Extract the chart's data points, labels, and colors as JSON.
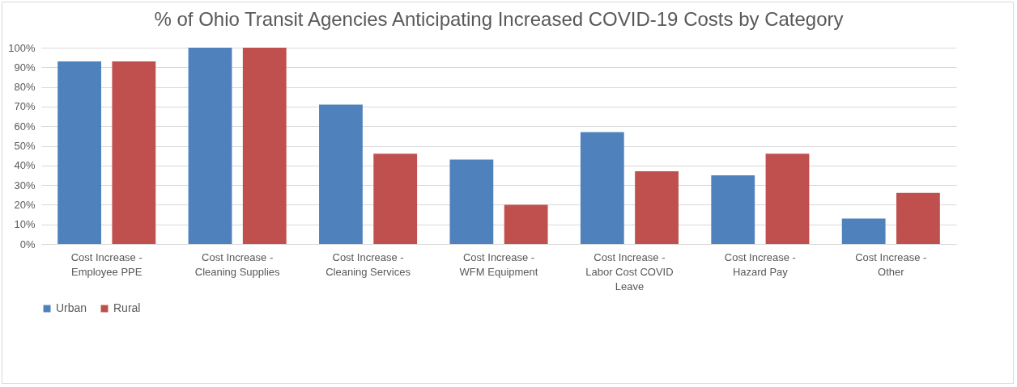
{
  "chart_data": {
    "type": "bar",
    "title": "% of Ohio Transit Agencies Anticipating Increased COVID-19 Costs by Category",
    "categories": [
      "Cost Increase - Employee PPE",
      "Cost Increase - Cleaning Supplies",
      "Cost Increase - Cleaning Services",
      "Cost Increase - WFM Equipment",
      "Cost Increase - Labor Cost COVID Leave",
      "Cost Increase - Hazard Pay",
      "Cost Increase - Other"
    ],
    "series": [
      {
        "name": "Urban",
        "color": "#4f81bd",
        "values": [
          93,
          100,
          71,
          43,
          57,
          35,
          13
        ]
      },
      {
        "name": "Rural",
        "color": "#c0504d",
        "values": [
          93,
          100,
          46,
          20,
          37,
          46,
          26
        ]
      }
    ],
    "ylim": [
      0,
      100
    ],
    "yticks": [
      {
        "value": 0,
        "label": "0%"
      },
      {
        "value": 10,
        "label": "10%"
      },
      {
        "value": 20,
        "label": "20%"
      },
      {
        "value": 30,
        "label": "30%"
      },
      {
        "value": 40,
        "label": "40%"
      },
      {
        "value": 50,
        "label": "50%"
      },
      {
        "value": 60,
        "label": "60%"
      },
      {
        "value": 70,
        "label": "70%"
      },
      {
        "value": 80,
        "label": "80%"
      },
      {
        "value": 90,
        "label": "90%"
      },
      {
        "value": 100,
        "label": "100%"
      }
    ],
    "grid": "y",
    "legend": "bottom"
  }
}
